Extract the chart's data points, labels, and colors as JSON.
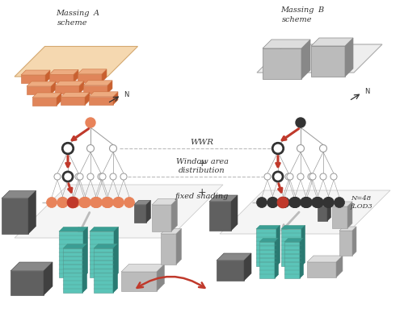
{
  "title_A": "Massing\nscheme",
  "title_A_letter": "A",
  "title_B": "Massing\nscheme",
  "title_B_letter": "B",
  "label_WWR": "WWR",
  "label_window": "Window area\ndistribution",
  "label_shading": "fixed shading",
  "label_N48": "N=48\nfLOD3",
  "label_plus1": "+",
  "label_plus2": "+",
  "color_orange": "#E8835A",
  "color_orange_top": "#EDAB80",
  "color_orange_right": "#C96030",
  "color_orange_left": "#E0855A",
  "color_red": "#C0392B",
  "color_dark": "#333333",
  "color_gray_light": "#BBBBBB",
  "color_gray_mid": "#999999",
  "color_gray_dark": "#777777",
  "color_gray_node": "#AAAAAA",
  "color_teal": "#5BC4B8",
  "color_teal_dark": "#3A9E94",
  "color_teal_side": "#2A7A72",
  "color_white": "#FFFFFF",
  "color_bg": "#FFFFFF",
  "color_plat_A_fill": "#F5D8B0",
  "color_plat_A_edge": "#D4A870",
  "color_plat_B_fill": "#EEEEEE",
  "color_plat_B_edge": "#AAAAAA",
  "color_build_gray_top": "#DDDDDD",
  "color_build_gray_right": "#888888",
  "color_build_gray_left": "#BBBBBB",
  "color_ground_fill": "#F0F0F0",
  "color_ground_edge": "#CCCCCC"
}
